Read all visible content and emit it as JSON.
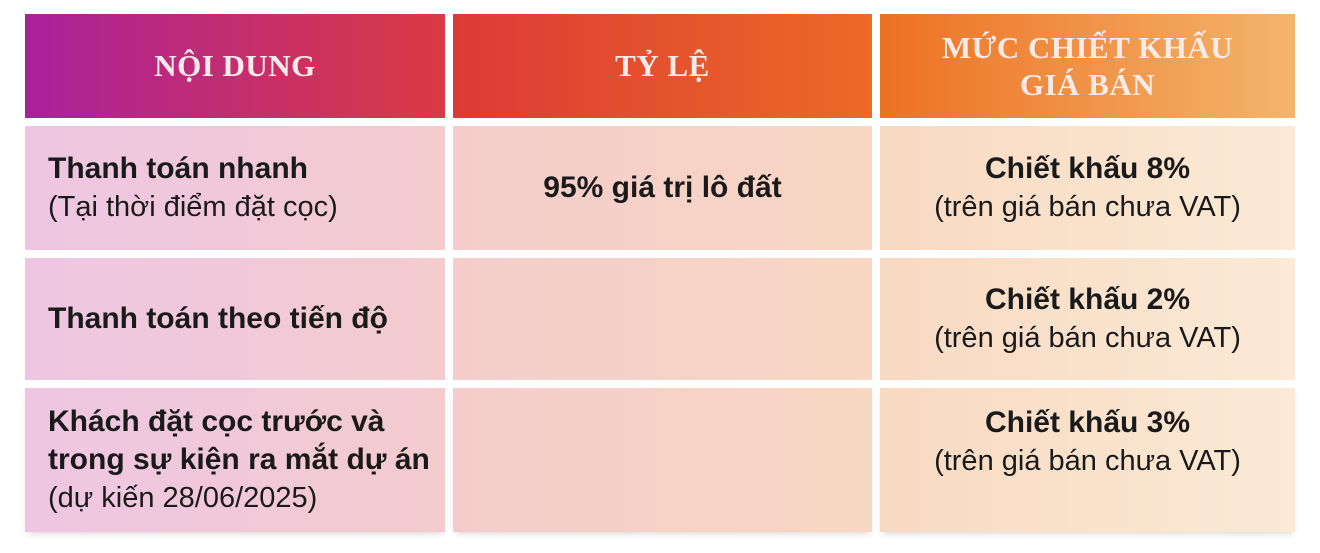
{
  "colors": {
    "header_gradient_stops": [
      "#aa219c",
      "#db3a43",
      "#ec6a25",
      "#f3b56c"
    ],
    "body_gradient_stops": [
      "#eec6e3",
      "#f4cbce",
      "#f8d7c3",
      "#fbead6"
    ],
    "header_text": "#faeae8",
    "body_text": "#1a1a1a",
    "background": "#ffffff"
  },
  "table": {
    "headers": {
      "noi_dung": "NỘI DUNG",
      "ty_le": "TỶ LỆ",
      "muc_chiet_khau": "MỨC CHIẾT KHẤU\nGIÁ BÁN"
    },
    "rows": [
      {
        "noi_dung_bold": "Thanh toán nhanh",
        "noi_dung_note": "(Tại thời điểm đặt cọc)",
        "ty_le": "95% giá trị lô đất",
        "chiet_khau_bold": "Chiết khấu 8%",
        "chiet_khau_note": "(trên giá bán chưa VAT)"
      },
      {
        "noi_dung_bold": "Thanh toán theo tiến độ",
        "noi_dung_note": "",
        "ty_le": "",
        "chiet_khau_bold": "Chiết khấu 2%",
        "chiet_khau_note": "(trên giá bán chưa VAT)"
      },
      {
        "noi_dung_bold": "Khách đặt cọc trước và\ntrong sự kiện ra mắt dự án",
        "noi_dung_note": "(dự kiến 28/06/2025)",
        "ty_le": "",
        "chiet_khau_bold": "Chiết khấu 3%",
        "chiet_khau_note": "(trên giá bán chưa VAT)"
      }
    ]
  }
}
